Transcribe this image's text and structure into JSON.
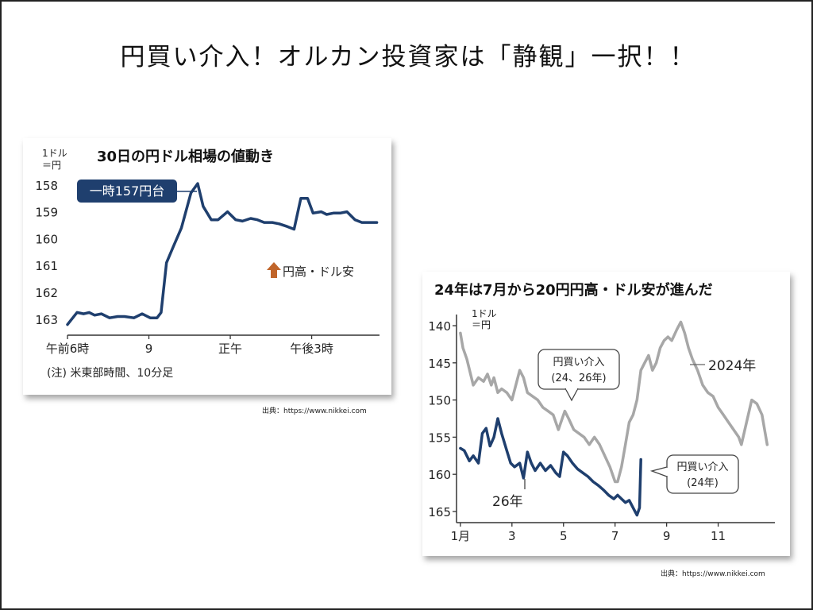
{
  "slide": {
    "title": "円買い介入！オルカン投資家は「静観」一択！！",
    "credit1": "出典：https://www.nikkei.com",
    "credit2": "出典：https://www.nikkei.com"
  },
  "chart_data": [
    {
      "type": "line",
      "title": "30日の円ドル相場の値動き",
      "unit_label": [
        "1ドル",
        "＝円"
      ],
      "y_inverted": true,
      "ylim": [
        163.3,
        157.8
      ],
      "y_ticks": [
        "158",
        "159",
        "160",
        "161",
        "162",
        "163"
      ],
      "x_ticks": [
        "午前6時",
        "9",
        "正午",
        "午後3時"
      ],
      "x_tick_hours": [
        6,
        9,
        12,
        15
      ],
      "xlim": [
        6,
        17.5
      ],
      "series": [
        {
          "name": "",
          "color": "#1f3f6e",
          "x": [
            6.0,
            6.35,
            6.6,
            6.8,
            7.0,
            7.25,
            7.55,
            7.85,
            8.1,
            8.45,
            8.75,
            9.05,
            9.3,
            9.45,
            9.65,
            9.9,
            10.2,
            10.55,
            10.8,
            11.0,
            11.3,
            11.55,
            11.9,
            12.2,
            12.45,
            12.75,
            13.0,
            13.25,
            13.55,
            13.8,
            14.1,
            14.35,
            14.6,
            14.85,
            15.05,
            15.35,
            15.55,
            15.8,
            16.05,
            16.3,
            16.6,
            16.85,
            17.1,
            17.4
          ],
          "values": [
            163.2,
            162.75,
            162.8,
            162.75,
            162.85,
            162.8,
            162.95,
            162.9,
            162.9,
            162.95,
            162.8,
            162.95,
            162.95,
            162.75,
            160.9,
            160.3,
            159.6,
            158.3,
            157.95,
            158.8,
            159.3,
            159.3,
            159.0,
            159.3,
            159.35,
            159.25,
            159.3,
            159.4,
            159.4,
            159.45,
            159.55,
            159.65,
            158.5,
            158.5,
            159.05,
            159.0,
            159.1,
            159.05,
            159.05,
            159.0,
            159.3,
            159.4,
            159.4,
            159.4
          ]
        }
      ],
      "annotations": [
        {
          "text": "一時157円台",
          "x": 10.8,
          "y": 157.95
        },
        {
          "text": "円高・ドル安",
          "marker": "up-arrow",
          "marker_color": "#c0652a"
        }
      ],
      "note": "(注) 米東部時間、10分足",
      "grid": false
    },
    {
      "type": "line",
      "title": "24年は7月から20円円高・ドル安が進んだ",
      "unit_label": [
        "1ドル",
        "＝円"
      ],
      "y_inverted": true,
      "ylim": [
        166.5,
        138.5
      ],
      "y_ticks": [
        140,
        145,
        150,
        155,
        160,
        165
      ],
      "x_ticks": [
        "1月",
        "3",
        "5",
        "7",
        "9",
        "11"
      ],
      "x_tick_months": [
        1,
        3,
        5,
        7,
        9,
        11
      ],
      "xlim": [
        0.85,
        13.2
      ],
      "series": [
        {
          "name": "2024年",
          "color": "#a7a7a7",
          "x": [
            1.0,
            1.1,
            1.25,
            1.5,
            1.7,
            1.9,
            2.05,
            2.2,
            2.3,
            2.45,
            2.6,
            2.8,
            3.0,
            3.15,
            3.3,
            3.45,
            3.6,
            3.8,
            4.0,
            4.2,
            4.4,
            4.6,
            4.8,
            4.9,
            5.05,
            5.2,
            5.4,
            5.6,
            5.8,
            6.0,
            6.2,
            6.4,
            6.6,
            6.8,
            7.0,
            7.1,
            7.25,
            7.4,
            7.55,
            7.7,
            7.85,
            8.0,
            8.15,
            8.3,
            8.45,
            8.6,
            8.75,
            8.9,
            9.05,
            9.2,
            9.4,
            9.55,
            9.7,
            9.85,
            10.0,
            10.2,
            10.4,
            10.6,
            10.8,
            11.0,
            11.2,
            11.4,
            11.6,
            11.8,
            11.9,
            12.1,
            12.3,
            12.5,
            12.7,
            12.9
          ],
          "values": [
            141,
            143,
            144.5,
            148,
            147,
            147.5,
            146.5,
            148,
            147,
            149,
            148.5,
            149,
            150,
            148,
            146,
            147,
            149,
            149.5,
            150,
            151,
            151.5,
            152,
            154,
            153,
            151.5,
            152.5,
            154,
            154.5,
            155,
            156,
            155,
            156,
            157.5,
            159,
            161,
            161,
            159,
            156,
            153,
            152,
            150,
            146,
            145,
            144,
            146,
            145,
            143,
            142,
            141.5,
            142,
            140.5,
            139.5,
            141,
            143,
            144.5,
            146,
            148,
            149,
            149.5,
            151,
            152,
            153,
            154,
            155,
            156,
            153,
            150,
            150.5,
            152,
            156
          ]
        },
        {
          "name": "26年",
          "color": "#1f3f6e",
          "x": [
            1.0,
            1.15,
            1.35,
            1.5,
            1.7,
            1.85,
            2.0,
            2.15,
            2.3,
            2.45,
            2.6,
            2.8,
            2.95,
            3.1,
            3.3,
            3.45,
            3.6,
            3.75,
            3.9,
            4.1,
            4.3,
            4.5,
            4.7,
            4.85,
            5.0,
            5.15,
            5.35,
            5.55,
            5.75,
            5.95,
            6.15,
            6.35,
            6.55,
            6.75,
            6.95,
            7.1,
            7.25,
            7.4,
            7.55,
            7.7,
            7.85,
            7.95,
            8.0
          ],
          "values": [
            156.5,
            156.8,
            158.2,
            157.5,
            158.5,
            154.5,
            153.8,
            156.2,
            155,
            152.5,
            154.5,
            156.8,
            158.5,
            159,
            158.5,
            160.5,
            157,
            158.5,
            159.5,
            158.5,
            159.5,
            158.8,
            159.8,
            160.3,
            157,
            157.5,
            158.5,
            159.3,
            159.8,
            160.3,
            161,
            161.5,
            162.1,
            162.8,
            163.3,
            162.8,
            163.3,
            163.8,
            163.5,
            164.5,
            165.5,
            164.5,
            158
          ]
        }
      ],
      "annotations": [
        {
          "text": "円買い介入",
          "text2": "(24、26年)"
        },
        {
          "text": "円買い介入",
          "text2": "(24年)"
        },
        {
          "text": "2024年"
        },
        {
          "text": "26年"
        }
      ],
      "grid": false
    }
  ]
}
